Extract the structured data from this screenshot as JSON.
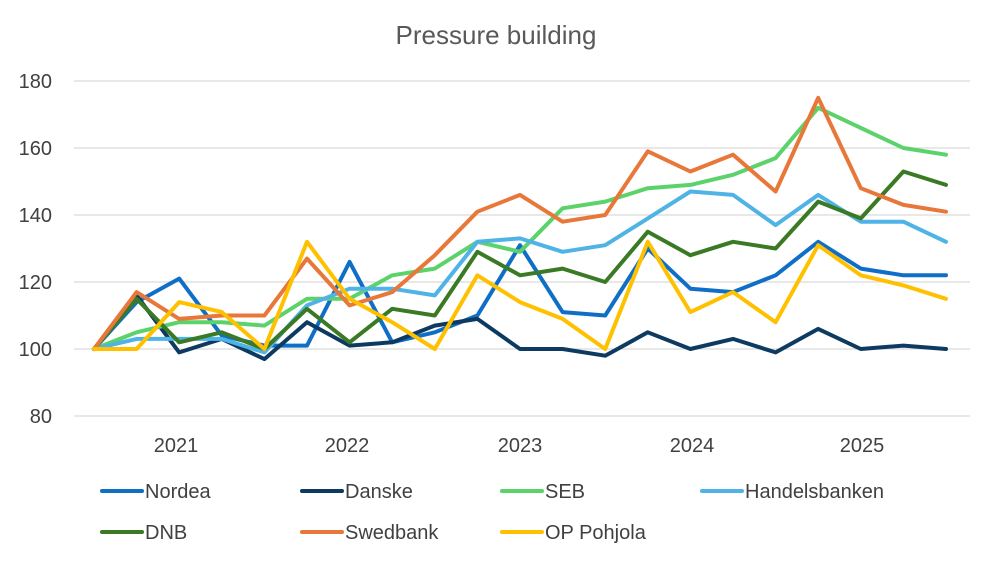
{
  "chart_data": {
    "type": "line",
    "title": "Pressure building",
    "xlabel": "",
    "ylabel": "",
    "ylim": [
      80,
      180
    ],
    "yticks": [
      80,
      100,
      120,
      140,
      160,
      180
    ],
    "year_labels": [
      "2021",
      "2022",
      "2023",
      "2024",
      "2025"
    ],
    "grid": true,
    "legend_position": "bottom",
    "series": [
      {
        "name": "Nordea",
        "color": "#0F6FC6",
        "values": [
          100,
          114,
          121,
          104,
          101,
          101,
          126,
          102,
          105,
          110,
          131,
          111,
          110,
          130,
          118,
          117,
          122,
          132,
          124,
          122,
          122
        ]
      },
      {
        "name": "Danske",
        "color": "#0D3A60",
        "values": [
          100,
          116,
          99,
          103,
          97,
          108,
          101,
          102,
          107,
          109,
          100,
          100,
          98,
          105,
          100,
          103,
          99,
          106,
          100,
          101,
          100
        ]
      },
      {
        "name": "SEB",
        "color": "#5BD36A",
        "values": [
          100,
          105,
          108,
          108,
          107,
          115,
          115,
          122,
          124,
          132,
          129,
          142,
          144,
          148,
          149,
          152,
          157,
          172,
          166,
          160,
          158
        ]
      },
      {
        "name": "Handelsbanken",
        "color": "#4FB3E6",
        "values": [
          100,
          103,
          103,
          103,
          99,
          113,
          118,
          118,
          116,
          132,
          133,
          129,
          131,
          139,
          147,
          146,
          137,
          146,
          138,
          138,
          132
        ]
      },
      {
        "name": "DNB",
        "color": "#3A7A24",
        "values": [
          100,
          115,
          102,
          105,
          100,
          112,
          102,
          112,
          110,
          129,
          122,
          124,
          120,
          135,
          128,
          132,
          130,
          144,
          139,
          153,
          149
        ]
      },
      {
        "name": "Swedbank",
        "color": "#E8773A",
        "values": [
          100,
          117,
          109,
          110,
          110,
          127,
          113,
          117,
          128,
          141,
          146,
          138,
          140,
          159,
          153,
          158,
          147,
          175,
          148,
          143,
          141
        ]
      },
      {
        "name": "OP Pohjola",
        "color": "#FFC000",
        "values": [
          100,
          100,
          114,
          111,
          100,
          132,
          115,
          108,
          100,
          122,
          114,
          109,
          100,
          132,
          111,
          117,
          108,
          131,
          122,
          119,
          115
        ]
      }
    ]
  }
}
